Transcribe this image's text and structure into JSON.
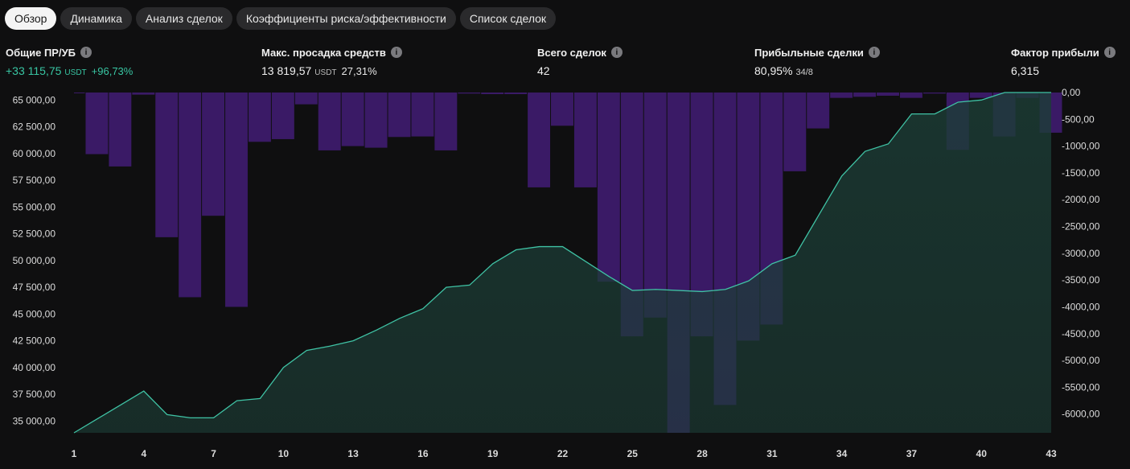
{
  "tabs": [
    {
      "label": "Обзор",
      "active": true
    },
    {
      "label": "Динамика",
      "active": false
    },
    {
      "label": "Анализ сделок",
      "active": false
    },
    {
      "label": "Коэффициенты риска/эффективности",
      "active": false
    },
    {
      "label": "Список сделок",
      "active": false
    }
  ],
  "stats": {
    "net_pnl": {
      "label": "Общие ПР/УБ",
      "value": "+33 115,75",
      "unit": "USDT",
      "percent": "+96,73%"
    },
    "max_drawdown": {
      "label": "Макс. просадка средств",
      "value": "13 819,57",
      "unit": "USDT",
      "percent": "27,31%"
    },
    "total_trades": {
      "label": "Всего сделок",
      "value": "42"
    },
    "profitable_trades": {
      "label": "Прибыльные сделки",
      "value": "80,95%",
      "ratio": "34/8"
    },
    "profit_factor": {
      "label": "Фактор прибыли",
      "value": "6,315"
    }
  },
  "colors": {
    "equity_line": "#3fc2a4",
    "equity_fill": "#1c3d36",
    "drawdown_bar": "#3a1a66",
    "drawdown_bar_over_area": "#352f6a",
    "background": "#0f0f10",
    "accent_green": "#38c6a3"
  },
  "chart_data": {
    "type": "area",
    "x_ticks": [
      "1",
      "4",
      "7",
      "10",
      "13",
      "16",
      "19",
      "22",
      "25",
      "28",
      "31",
      "34",
      "37",
      "40",
      "43"
    ],
    "left_axis": {
      "ticks": [
        "65 000,00",
        "62 500,00",
        "60 000,00",
        "57 500,00",
        "55 000,00",
        "52 500,00",
        "50 000,00",
        "47 500,00",
        "45 000,00",
        "42 500,00",
        "40 000,00",
        "37 500,00",
        "35 000,00"
      ],
      "ylim": [
        33900,
        65700
      ]
    },
    "right_axis": {
      "ticks": [
        "0,00",
        "-500,00",
        "-1000,00",
        "-1500,00",
        "-2000,00",
        "-2500,00",
        "-3000,00",
        "-3500,00",
        "-4000,00",
        "-4500,00",
        "-5000,00",
        "-5500,00",
        "-6000,00"
      ],
      "ylim": [
        -6350,
        0
      ]
    },
    "series": [
      {
        "type": "area",
        "x": [
          1,
          2,
          3,
          4,
          5,
          6,
          7,
          8,
          9,
          10,
          11,
          12,
          13,
          14,
          15,
          16,
          17,
          18,
          19,
          20,
          21,
          22,
          23,
          24,
          25,
          26,
          27,
          28,
          29,
          30,
          31,
          32,
          33,
          34,
          35,
          36,
          37,
          38,
          39,
          40,
          41,
          42,
          43
        ],
        "values": [
          33900,
          35200,
          36500,
          37800,
          35600,
          35300,
          35300,
          36900,
          37100,
          40000,
          41600,
          42000,
          42500,
          43500,
          44600,
          45500,
          47500,
          47700,
          49700,
          51000,
          51300,
          51300,
          49900,
          48500,
          47200,
          47300,
          47200,
          47100,
          47300,
          48100,
          49700,
          50500,
          54200,
          57900,
          60200,
          60900,
          63700,
          63700,
          64800,
          65000,
          66400,
          66600,
          69000
        ]
      },
      {
        "type": "bar",
        "x": [
          1,
          2,
          3,
          4,
          5,
          6,
          7,
          8,
          9,
          10,
          11,
          12,
          13,
          14,
          15,
          16,
          17,
          18,
          19,
          20,
          21,
          22,
          23,
          24,
          25,
          26,
          27,
          28,
          29,
          30,
          31,
          32,
          33,
          34,
          35,
          36,
          37,
          38,
          39,
          40,
          41,
          42,
          43
        ],
        "values": [
          0,
          -1150,
          -1380,
          -40,
          -2700,
          -3820,
          -2300,
          -4000,
          -920,
          -870,
          -220,
          -1080,
          -1000,
          -1030,
          -830,
          -820,
          -1080,
          -20,
          -30,
          -30,
          -1770,
          -620,
          -1770,
          -3530,
          -4550,
          -4200,
          -6350,
          -4550,
          -5830,
          -4630,
          -4330,
          -1470,
          -670,
          -100,
          -80,
          -60,
          -100,
          -20,
          -1070,
          -100,
          -820,
          -100,
          -750
        ]
      }
    ]
  }
}
